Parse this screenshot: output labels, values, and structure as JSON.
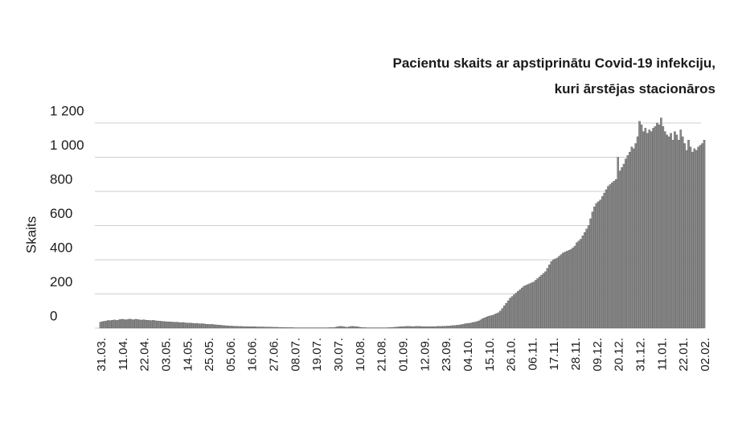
{
  "chart_data": {
    "type": "bar",
    "title": [
      "Pacientu skaits ar apstiprinātu Covid-19 infekciju,",
      "kuri ārstējas stacionāros"
    ],
    "ylabel": "Skaits",
    "color": "#8a8a8a",
    "grid": true,
    "ylim": [
      0,
      1200
    ],
    "yticks": [
      0,
      200,
      400,
      600,
      800,
      {
        "value": 1000,
        "label": "1 000"
      },
      {
        "value": 1200,
        "label": "1 200"
      }
    ],
    "categories": [
      "31.03.",
      null,
      null,
      null,
      null,
      null,
      null,
      null,
      null,
      null,
      null,
      "11.04.",
      null,
      null,
      null,
      null,
      null,
      null,
      null,
      null,
      null,
      null,
      "22.04.",
      null,
      null,
      null,
      null,
      null,
      null,
      null,
      null,
      null,
      null,
      "03.05.",
      null,
      null,
      null,
      null,
      null,
      null,
      null,
      null,
      null,
      null,
      "14.05.",
      null,
      null,
      null,
      null,
      null,
      null,
      null,
      null,
      null,
      null,
      "25.05.",
      null,
      null,
      null,
      null,
      null,
      null,
      null,
      null,
      null,
      null,
      "05.06.",
      null,
      null,
      null,
      null,
      null,
      null,
      null,
      null,
      null,
      null,
      "16.06.",
      null,
      null,
      null,
      null,
      null,
      null,
      null,
      null,
      null,
      null,
      "27.06.",
      null,
      null,
      null,
      null,
      null,
      null,
      null,
      null,
      null,
      null,
      "08.07.",
      null,
      null,
      null,
      null,
      null,
      null,
      null,
      null,
      null,
      null,
      "19.07.",
      null,
      null,
      null,
      null,
      null,
      null,
      null,
      null,
      null,
      null,
      "30.07.",
      null,
      null,
      null,
      null,
      null,
      null,
      null,
      null,
      null,
      null,
      "10.08.",
      null,
      null,
      null,
      null,
      null,
      null,
      null,
      null,
      null,
      null,
      "21.08.",
      null,
      null,
      null,
      null,
      null,
      null,
      null,
      null,
      null,
      null,
      "01.09.",
      null,
      null,
      null,
      null,
      null,
      null,
      null,
      null,
      null,
      null,
      "12.09.",
      null,
      null,
      null,
      null,
      null,
      null,
      null,
      null,
      null,
      null,
      "23.09.",
      null,
      null,
      null,
      null,
      null,
      null,
      null,
      null,
      null,
      null,
      "04.10.",
      null,
      null,
      null,
      null,
      null,
      null,
      null,
      null,
      null,
      null,
      "15.10.",
      null,
      null,
      null,
      null,
      null,
      null,
      null,
      null,
      null,
      null,
      "26.10.",
      null,
      null,
      null,
      null,
      null,
      null,
      null,
      null,
      null,
      null,
      "06.11.",
      null,
      null,
      null,
      null,
      null,
      null,
      null,
      null,
      null,
      null,
      "17.11.",
      null,
      null,
      null,
      null,
      null,
      null,
      null,
      null,
      null,
      null,
      "28.11.",
      null,
      null,
      null,
      null,
      null,
      null,
      null,
      null,
      null,
      null,
      "09.12.",
      null,
      null,
      null,
      null,
      null,
      null,
      null,
      null,
      null,
      null,
      "20.12.",
      null,
      null,
      null,
      null,
      null,
      null,
      null,
      null,
      null,
      null,
      "31.12.",
      null,
      null,
      null,
      null,
      null,
      null,
      null,
      null,
      null,
      null,
      "11.01.",
      null,
      null,
      null,
      null,
      null,
      null,
      null,
      null,
      null,
      null,
      "22.01.",
      null,
      null,
      null,
      null,
      null,
      null,
      null,
      null,
      null,
      null,
      "02.02."
    ],
    "values": [
      35,
      38,
      40,
      42,
      45,
      44,
      46,
      48,
      45,
      47,
      50,
      52,
      50,
      48,
      51,
      53,
      50,
      49,
      52,
      50,
      48,
      47,
      49,
      47,
      46,
      45,
      44,
      46,
      43,
      42,
      41,
      40,
      39,
      38,
      37,
      36,
      36,
      35,
      34,
      35,
      33,
      32,
      33,
      31,
      30,
      29,
      30,
      28,
      27,
      28,
      26,
      25,
      26,
      24,
      23,
      22,
      21,
      22,
      20,
      19,
      18,
      17,
      16,
      15,
      14,
      13,
      12,
      12,
      11,
      11,
      10,
      10,
      10,
      9,
      9,
      9,
      8,
      8,
      8,
      8,
      7,
      7,
      7,
      7,
      6,
      6,
      6,
      6,
      5,
      5,
      5,
      4,
      4,
      4,
      3,
      3,
      3,
      3,
      3,
      2,
      2,
      2,
      2,
      2,
      2,
      2,
      2,
      2,
      2,
      2,
      2,
      2,
      2,
      2,
      2,
      2,
      2,
      3,
      3,
      3,
      5,
      8,
      10,
      10,
      9,
      6,
      5,
      8,
      10,
      10,
      9,
      8,
      6,
      4,
      3,
      3,
      2,
      2,
      2,
      2,
      2,
      2,
      2,
      2,
      2,
      2,
      2,
      3,
      3,
      4,
      5,
      6,
      7,
      8,
      9,
      9,
      10,
      10,
      10,
      9,
      9,
      10,
      10,
      10,
      9,
      9,
      8,
      8,
      8,
      9,
      9,
      9,
      10,
      10,
      10,
      11,
      11,
      12,
      12,
      14,
      15,
      15,
      17,
      18,
      20,
      22,
      25,
      27,
      28,
      30,
      33,
      35,
      38,
      42,
      48,
      55,
      60,
      65,
      70,
      72,
      75,
      80,
      85,
      90,
      100,
      115,
      130,
      145,
      160,
      175,
      185,
      195,
      205,
      215,
      225,
      235,
      245,
      250,
      255,
      260,
      265,
      270,
      280,
      290,
      300,
      310,
      320,
      330,
      350,
      370,
      390,
      400,
      405,
      410,
      420,
      430,
      440,
      445,
      450,
      455,
      460,
      470,
      480,
      500,
      510,
      520,
      540,
      560,
      580,
      600,
      640,
      680,
      710,
      730,
      740,
      750,
      770,
      790,
      810,
      830,
      840,
      850,
      860,
      870,
      1000,
      920,
      940,
      960,
      990,
      1010,
      1030,
      1060,
      1050,
      1080,
      1120,
      1210,
      1190,
      1150,
      1170,
      1140,
      1160,
      1150,
      1170,
      1180,
      1200,
      1190,
      1230,
      1180,
      1150,
      1130,
      1120,
      1140,
      1100,
      1150,
      1130,
      1100,
      1160,
      1120,
      1080,
      1040,
      1100,
      1060,
      1030,
      1050,
      1040,
      1060,
      1070,
      1080,
      1100
    ]
  }
}
